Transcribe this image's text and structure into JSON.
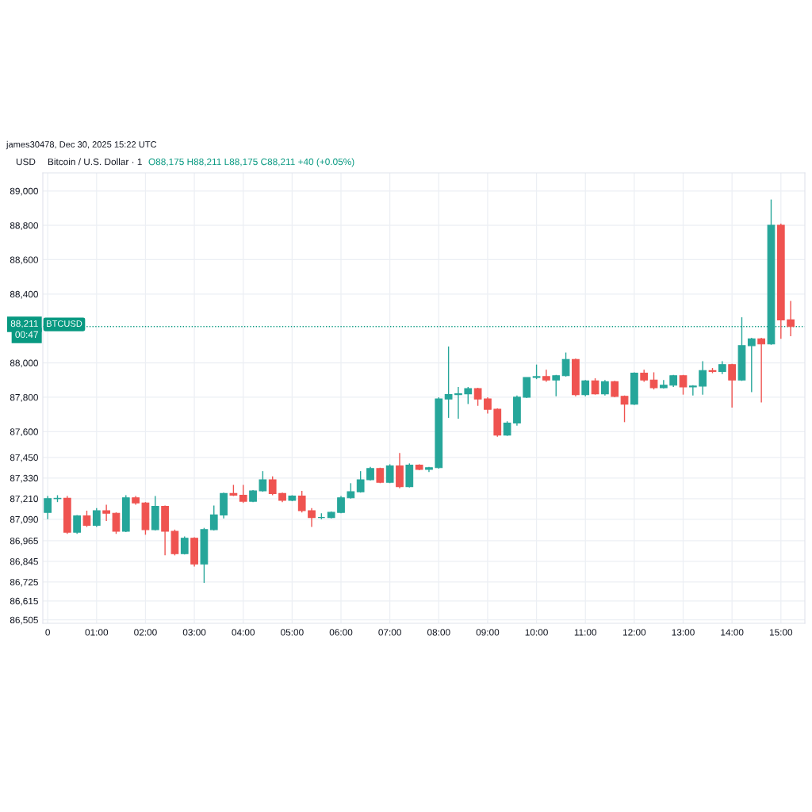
{
  "chart_data": {
    "type": "candlestick",
    "title": "Bitcoin / U.S. Dollar · 1",
    "subtitle": "O88,175 H88,211 L88,175 C88,211 +40 (+0.05%)",
    "ylabel": "USD",
    "annotations": [
      "james30478, Dec 30, 2025 15:22 UTC",
      "00:47",
      {
        "text": "BTCUSD",
        "y": 88211
      }
    ],
    "x": [
      0,
      0.2,
      0.4,
      0.6,
      0.8,
      1,
      1.2,
      1.4,
      1.6,
      1.8,
      2,
      2.2,
      2.4,
      2.6,
      2.8,
      3,
      3.2,
      3.4,
      3.6,
      3.8,
      4,
      4.2,
      4.4,
      4.6,
      4.8,
      5,
      5.2,
      5.4,
      5.6,
      5.8,
      6,
      6.2,
      6.4,
      6.6,
      6.8,
      7,
      7.2,
      7.4,
      7.6,
      7.8,
      8,
      8.2,
      8.4,
      8.6,
      8.8,
      9,
      9.2,
      9.4,
      9.6,
      9.8,
      10,
      10.2,
      10.4,
      10.6,
      10.8,
      11,
      11.2,
      11.4,
      11.6,
      11.8,
      12,
      12.2,
      12.4,
      12.6,
      12.8,
      13,
      13.2,
      13.4,
      13.6,
      13.8,
      14,
      14.2,
      14.4,
      14.6,
      14.8,
      15,
      15.2
    ],
    "ohlc": [
      [
        87130,
        87225,
        87090,
        87210
      ],
      [
        87210,
        87230,
        87190,
        87212
      ],
      [
        87212,
        87225,
        87005,
        87015
      ],
      [
        87015,
        87115,
        87005,
        87110
      ],
      [
        87110,
        87140,
        87045,
        87055
      ],
      [
        87055,
        87155,
        87045,
        87140
      ],
      [
        87140,
        87175,
        87080,
        87125
      ],
      [
        87125,
        87130,
        87005,
        87020
      ],
      [
        87020,
        87230,
        87015,
        87215
      ],
      [
        87215,
        87225,
        87175,
        87185
      ],
      [
        87185,
        87190,
        87000,
        87030
      ],
      [
        87030,
        87225,
        87025,
        87165
      ],
      [
        87165,
        87170,
        86880,
        87020
      ],
      [
        87020,
        87030,
        86880,
        86890
      ],
      [
        86890,
        86990,
        86885,
        86980
      ],
      [
        86980,
        86985,
        86815,
        86830
      ],
      [
        86830,
        87040,
        86720,
        87030
      ],
      [
        87030,
        87170,
        87025,
        87115
      ],
      [
        87115,
        87245,
        87095,
        87240
      ],
      [
        87240,
        87290,
        87225,
        87230
      ],
      [
        87230,
        87290,
        87185,
        87195
      ],
      [
        87195,
        87260,
        87190,
        87255
      ],
      [
        87255,
        87370,
        87250,
        87320
      ],
      [
        87320,
        87340,
        87230,
        87240
      ],
      [
        87240,
        87245,
        87190,
        87200
      ],
      [
        87200,
        87230,
        87195,
        87225
      ],
      [
        87225,
        87255,
        87130,
        87140
      ],
      [
        87140,
        87155,
        87045,
        87100
      ],
      [
        87100,
        87125,
        87090,
        87100
      ],
      [
        87100,
        87135,
        87095,
        87130
      ],
      [
        87130,
        87225,
        87125,
        87215
      ],
      [
        87215,
        87300,
        87210,
        87250
      ],
      [
        87250,
        87370,
        87245,
        87320
      ],
      [
        87320,
        87395,
        87315,
        87385
      ],
      [
        87385,
        87390,
        87300,
        87305
      ],
      [
        87305,
        87410,
        87300,
        87400
      ],
      [
        87400,
        87475,
        87270,
        87280
      ],
      [
        87280,
        87415,
        87275,
        87405
      ],
      [
        87405,
        87410,
        87375,
        87380
      ],
      [
        87380,
        87395,
        87365,
        87390
      ],
      [
        87390,
        87800,
        87385,
        87790
      ],
      [
        87790,
        88095,
        87680,
        87815
      ],
      [
        87815,
        87860,
        87675,
        87820
      ],
      [
        87820,
        87860,
        87760,
        87850
      ],
      [
        87850,
        87855,
        87750,
        87790
      ],
      [
        87790,
        87800,
        87705,
        87730
      ],
      [
        87730,
        87735,
        87570,
        87580
      ],
      [
        87580,
        87660,
        87575,
        87650
      ],
      [
        87650,
        87810,
        87635,
        87800
      ],
      [
        87800,
        87915,
        87795,
        87915
      ],
      [
        87915,
        87990,
        87905,
        87920
      ],
      [
        87920,
        87960,
        87890,
        87900
      ],
      [
        87900,
        87930,
        87805,
        87925
      ],
      [
        87925,
        88060,
        87920,
        88020
      ],
      [
        88020,
        88025,
        87805,
        87815
      ],
      [
        87815,
        87900,
        87805,
        87895
      ],
      [
        87895,
        87910,
        87815,
        87820
      ],
      [
        87820,
        87900,
        87810,
        87890
      ],
      [
        87890,
        87895,
        87800,
        87805
      ],
      [
        87805,
        87810,
        87655,
        87760
      ],
      [
        87760,
        87945,
        87755,
        87940
      ],
      [
        87940,
        87960,
        87890,
        87900
      ],
      [
        87900,
        87945,
        87845,
        87855
      ],
      [
        87855,
        87900,
        87850,
        87870
      ],
      [
        87870,
        87930,
        87860,
        87925
      ],
      [
        87925,
        87930,
        87815,
        87860
      ],
      [
        87860,
        87870,
        87810,
        87865
      ],
      [
        87865,
        88010,
        87815,
        87955
      ],
      [
        87955,
        87970,
        87940,
        87950
      ],
      [
        87950,
        88010,
        87935,
        87990
      ],
      [
        87990,
        87995,
        87740,
        87900
      ],
      [
        87900,
        88265,
        87895,
        88100
      ],
      [
        88100,
        88145,
        87830,
        88140
      ],
      [
        88140,
        88145,
        87770,
        88110
      ],
      [
        88110,
        88950,
        88105,
        88800
      ],
      [
        88800,
        88810,
        88140,
        88250
      ],
      [
        88250,
        88360,
        88155,
        88211
      ]
    ],
    "colors": [
      "#26a69a",
      "#26a69a",
      "#ef5350",
      "#26a69a",
      "#ef5350",
      "#26a69a",
      "#ef5350",
      "#ef5350",
      "#26a69a",
      "#ef5350",
      "#ef5350",
      "#26a69a",
      "#ef5350",
      "#ef5350",
      "#26a69a",
      "#ef5350",
      "#26a69a",
      "#26a69a",
      "#26a69a",
      "#ef5350",
      "#ef5350",
      "#26a69a",
      "#26a69a",
      "#ef5350",
      "#ef5350",
      "#26a69a",
      "#ef5350",
      "#ef5350",
      "#26a69a",
      "#26a69a",
      "#26a69a",
      "#26a69a",
      "#26a69a",
      "#26a69a",
      "#ef5350",
      "#26a69a",
      "#ef5350",
      "#26a69a",
      "#ef5350",
      "#26a69a",
      "#26a69a",
      "#26a69a",
      "#26a69a",
      "#26a69a",
      "#ef5350",
      "#ef5350",
      "#ef5350",
      "#26a69a",
      "#26a69a",
      "#26a69a",
      "#26a69a",
      "#ef5350",
      "#26a69a",
      "#26a69a",
      "#ef5350",
      "#26a69a",
      "#ef5350",
      "#26a69a",
      "#ef5350",
      "#ef5350",
      "#26a69a",
      "#ef5350",
      "#ef5350",
      "#26a69a",
      "#26a69a",
      "#ef5350",
      "#26a69a",
      "#26a69a",
      "#ef5350",
      "#26a69a",
      "#ef5350",
      "#26a69a",
      "#26a69a",
      "#ef5350",
      "#26a69a",
      "#ef5350",
      "#ef5350"
    ],
    "xlim": [
      -0.1,
      15.49
    ],
    "ylim": [
      86485,
      89105
    ],
    "xticks": [
      {
        "value": 0,
        "label": "0"
      },
      {
        "value": 1,
        "label": "01:00"
      },
      {
        "value": 2,
        "label": "02:00"
      },
      {
        "value": 3,
        "label": "03:00"
      },
      {
        "value": 4,
        "label": "04:00"
      },
      {
        "value": 5,
        "label": "05:00"
      },
      {
        "value": 6,
        "label": "06:00"
      },
      {
        "value": 7,
        "label": "07:00"
      },
      {
        "value": 8,
        "label": "08:00"
      },
      {
        "value": 9,
        "label": "09:00"
      },
      {
        "value": 10,
        "label": "10:00"
      },
      {
        "value": 11,
        "label": "11:00"
      },
      {
        "value": 12,
        "label": "12:00"
      },
      {
        "value": 13,
        "label": "13:00"
      },
      {
        "value": 14,
        "label": "14:00"
      },
      {
        "value": 15,
        "label": "15:00"
      }
    ],
    "yticks": [
      {
        "value": 89000,
        "label": "89,000"
      },
      {
        "value": 88800,
        "label": "88,800"
      },
      {
        "value": 88600,
        "label": "88,600"
      },
      {
        "value": 88400,
        "label": "88,400"
      },
      {
        "value": 88000,
        "label": "88,000"
      },
      {
        "value": 87800,
        "label": "87,800"
      },
      {
        "value": 87600,
        "label": "87,600"
      },
      {
        "value": 87450,
        "label": "87,450"
      },
      {
        "value": 87330,
        "label": "87,330"
      },
      {
        "value": 87210,
        "label": "87,210"
      },
      {
        "value": 87090,
        "label": "87,090"
      },
      {
        "value": 86965,
        "label": "86,965"
      },
      {
        "value": 86845,
        "label": "86,845"
      },
      {
        "value": 86725,
        "label": "86,725"
      },
      {
        "value": 86615,
        "label": "86,615"
      },
      {
        "value": 86505,
        "label": "86,505"
      }
    ],
    "grid": true,
    "ref_lines": [
      {
        "axis": "y",
        "value": 88211,
        "label": "88,211",
        "color": "#089981",
        "line_style": "dotted"
      }
    ]
  }
}
